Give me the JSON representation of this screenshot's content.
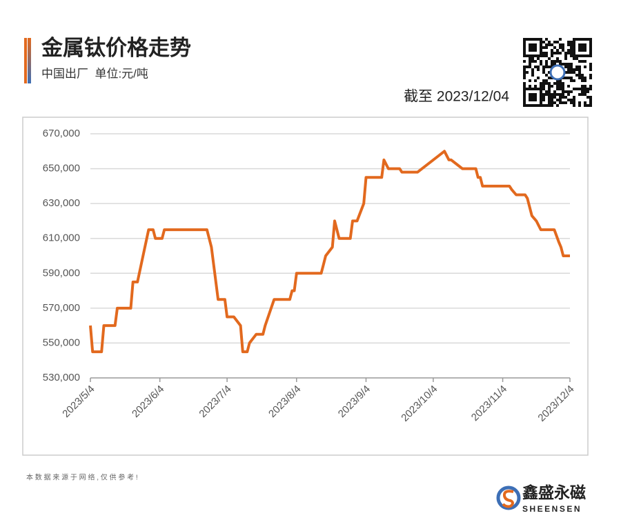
{
  "header": {
    "title": "金属钛价格走势",
    "subtitle": "中国出厂  单位:元/吨",
    "as_of": "截至 2023/12/04"
  },
  "chart_data": {
    "type": "line",
    "color": "#e2691e",
    "grid": true,
    "x": [
      "2023/5/4",
      "2023/5/5",
      "2023/5/9",
      "2023/5/10",
      "2023/5/15",
      "2023/5/16",
      "2023/5/22",
      "2023/5/23",
      "2023/5/25",
      "2023/5/30",
      "2023/6/1",
      "2023/6/2",
      "2023/6/5",
      "2023/6/6",
      "2023/6/25",
      "2023/6/27",
      "2023/6/30",
      "2023/7/3",
      "2023/7/4",
      "2023/7/7",
      "2023/7/10",
      "2023/7/11",
      "2023/7/13",
      "2023/7/14",
      "2023/7/17",
      "2023/7/20",
      "2023/7/21",
      "2023/7/25",
      "2023/8/1",
      "2023/8/2",
      "2023/8/3",
      "2023/8/4",
      "2023/8/15",
      "2023/8/16",
      "2023/8/17",
      "2023/8/20",
      "2023/8/21",
      "2023/8/23",
      "2023/8/28",
      "2023/8/29",
      "2023/8/31",
      "2023/9/3",
      "2023/9/4",
      "2023/9/11",
      "2023/9/12",
      "2023/9/14",
      "2023/9/19",
      "2023/9/20",
      "2023/9/27",
      "2023/10/9",
      "2023/10/11",
      "2023/10/12",
      "2023/10/15",
      "2023/10/17",
      "2023/10/23",
      "2023/10/24",
      "2023/10/25",
      "2023/10/26",
      "2023/11/7",
      "2023/11/8",
      "2023/11/10",
      "2023/11/14",
      "2023/11/15",
      "2023/11/17",
      "2023/11/19",
      "2023/11/21",
      "2023/11/27",
      "2023/11/29",
      "2023/11/30",
      "2023/12/1",
      "2023/12/4"
    ],
    "values": [
      560000,
      545000,
      545000,
      560000,
      560000,
      570000,
      570000,
      585000,
      585000,
      615000,
      615000,
      610000,
      610000,
      615000,
      615000,
      605000,
      575000,
      575000,
      565000,
      565000,
      560000,
      545000,
      545000,
      550000,
      555000,
      555000,
      560000,
      575000,
      575000,
      580000,
      580000,
      590000,
      590000,
      595000,
      600000,
      605000,
      620000,
      610000,
      610000,
      620000,
      620000,
      630000,
      645000,
      645000,
      655000,
      650000,
      650000,
      648000,
      648000,
      660000,
      655000,
      655000,
      652000,
      650000,
      650000,
      645000,
      645000,
      640000,
      640000,
      638000,
      635000,
      635000,
      633000,
      623000,
      620000,
      615000,
      615000,
      608000,
      605000,
      600000,
      600000
    ],
    "xlim": [
      "2023/5/4",
      "2023/12/4"
    ],
    "xticks": [
      "2023/5/4",
      "2023/6/4",
      "2023/7/4",
      "2023/8/4",
      "2023/9/4",
      "2023/10/4",
      "2023/11/4",
      "2023/12/4"
    ],
    "ylim": [
      530000,
      670000
    ],
    "yticks": [
      {
        "value": 530000,
        "label": "530,000"
      },
      {
        "value": 550000,
        "label": "550,000"
      },
      {
        "value": 570000,
        "label": "570,000"
      },
      {
        "value": 590000,
        "label": "590,000"
      },
      {
        "value": 610000,
        "label": "610,000"
      },
      {
        "value": 630000,
        "label": "630,000"
      },
      {
        "value": 650000,
        "label": "650,000"
      },
      {
        "value": 670000,
        "label": "670,000"
      }
    ]
  },
  "footer": {
    "note": "本 数 据 来 源 于 网 络 , 仅 供 参 考 !",
    "brand": "鑫盛永磁",
    "brand_en": "SHEENSEN"
  }
}
